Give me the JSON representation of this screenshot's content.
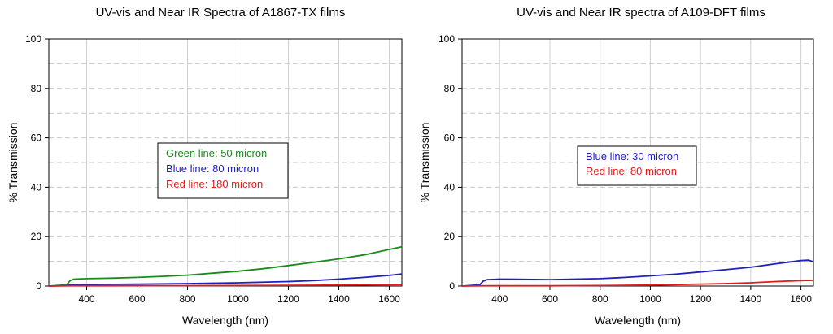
{
  "chart_data": [
    {
      "type": "line",
      "title": "UV-vis and Near IR Spectra of A1867-TX films",
      "xlabel": "Wavelength (nm)",
      "ylabel": "% Transmission",
      "xlim": [
        250,
        1650
      ],
      "ylim": [
        0,
        100
      ],
      "xticks": [
        400,
        600,
        800,
        1000,
        1200,
        1400,
        1600
      ],
      "yticks": [
        0,
        20,
        40,
        60,
        80,
        100
      ],
      "grid": "vertical solid at x ticks, horizontal dashed every 10",
      "legend": {
        "placement": "center-left",
        "entries": [
          {
            "text": "Green line:  50 micron",
            "color": "#1a8a1a"
          },
          {
            "text": "Blue line:  80 micron",
            "color": "#1f1fbf"
          },
          {
            "text": "Red line:  180 micron",
            "color": "#e01c1c"
          }
        ]
      },
      "series": [
        {
          "color": "#1a8a1a",
          "x": [
            250,
            320,
            335,
            350,
            400,
            500,
            600,
            700,
            800,
            900,
            1000,
            1100,
            1200,
            1300,
            1400,
            1500,
            1600,
            1650
          ],
          "values": [
            0,
            0.5,
            2.2,
            2.8,
            3.0,
            3.2,
            3.5,
            3.9,
            4.4,
            5.2,
            6.0,
            7.0,
            8.3,
            9.6,
            11.0,
            12.6,
            14.8,
            15.9
          ]
        },
        {
          "color": "#1f1fbf",
          "x": [
            250,
            320,
            340,
            400,
            600,
            800,
            1000,
            1200,
            1300,
            1400,
            1500,
            1600,
            1650
          ],
          "values": [
            0,
            0.2,
            0.5,
            0.6,
            0.8,
            1.0,
            1.3,
            1.8,
            2.2,
            2.8,
            3.5,
            4.3,
            4.9
          ]
        },
        {
          "color": "#e01c1c",
          "x": [
            250,
            330,
            400,
            800,
            1000,
            1200,
            1400,
            1600,
            1650
          ],
          "values": [
            0,
            0.1,
            0.1,
            0.15,
            0.2,
            0.3,
            0.4,
            0.55,
            0.6
          ]
        }
      ]
    },
    {
      "type": "line",
      "title": "UV-vis and Near IR spectra of A109-DFT films",
      "xlabel": "Wavelength (nm)",
      "ylabel": "% Transmission",
      "xlim": [
        250,
        1650
      ],
      "ylim": [
        0,
        100
      ],
      "xticks": [
        400,
        600,
        800,
        1000,
        1200,
        1400,
        1600
      ],
      "yticks": [
        0,
        20,
        40,
        60,
        80,
        100
      ],
      "grid": "vertical solid at x ticks, horizontal dashed every 10",
      "legend": {
        "placement": "center-right",
        "entries": [
          {
            "text": "Blue line:  30 micron",
            "color": "#1f1fbf"
          },
          {
            "text": "Red line:  80 micron",
            "color": "#e01c1c"
          }
        ]
      },
      "series": [
        {
          "color": "#1f1fbf",
          "x": [
            250,
            320,
            335,
            350,
            400,
            500,
            600,
            700,
            800,
            900,
            1000,
            1100,
            1200,
            1300,
            1400,
            1500,
            1600,
            1630,
            1650
          ],
          "values": [
            0,
            0.5,
            2.0,
            2.6,
            2.8,
            2.7,
            2.6,
            2.8,
            3.0,
            3.5,
            4.1,
            4.8,
            5.7,
            6.6,
            7.6,
            9.0,
            10.3,
            10.5,
            9.8
          ]
        },
        {
          "color": "#e01c1c",
          "x": [
            250,
            330,
            400,
            600,
            800,
            1000,
            1100,
            1200,
            1300,
            1400,
            1500,
            1600,
            1650
          ],
          "values": [
            0,
            0.1,
            0.1,
            0.1,
            0.2,
            0.4,
            0.6,
            0.8,
            1.0,
            1.3,
            1.8,
            2.2,
            2.3
          ]
        }
      ]
    }
  ]
}
